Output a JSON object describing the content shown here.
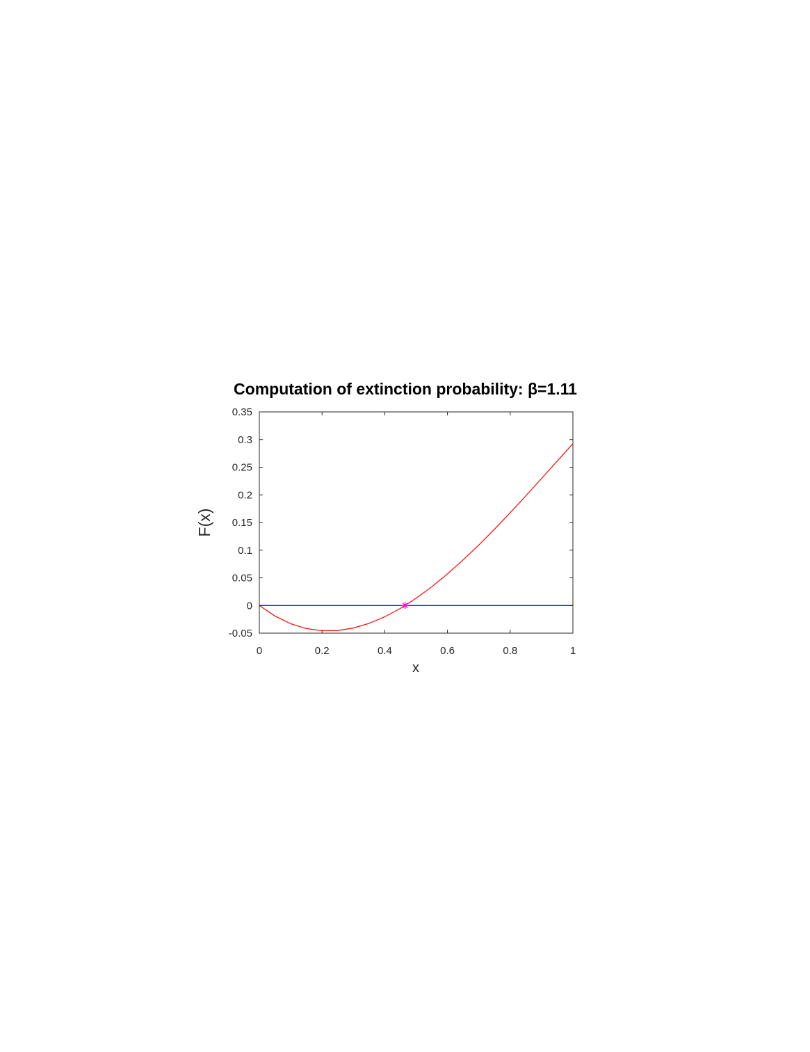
{
  "chart_data": {
    "type": "line",
    "title": "Computation of extinction probability: β=1.11",
    "xlabel": "x",
    "ylabel": "F(x)",
    "xlim": [
      0,
      1
    ],
    "ylim": [
      -0.05,
      0.35
    ],
    "xticks": [
      0,
      0.2,
      0.4,
      0.6,
      0.8,
      1
    ],
    "yticks": [
      -0.05,
      0,
      0.05,
      0.1,
      0.15,
      0.2,
      0.25,
      0.3,
      0.35
    ],
    "series": [
      {
        "color": "#ff0000",
        "marker": "none",
        "x": [
          0,
          0.05,
          0.1,
          0.15,
          0.2,
          0.25,
          0.3,
          0.35,
          0.4,
          0.45,
          0.5,
          0.55,
          0.6,
          0.65,
          0.7,
          0.75,
          0.8,
          0.85,
          0.9,
          0.95,
          1
        ],
        "values": [
          0,
          -0.0191,
          -0.0329,
          -0.0417,
          -0.0457,
          -0.0453,
          -0.0407,
          -0.0323,
          -0.0204,
          -0.0052,
          0.013,
          0.0339,
          0.0571,
          0.0824,
          0.1094,
          0.138,
          0.1677,
          0.1983,
          0.2296,
          0.2611,
          0.2925
        ]
      },
      {
        "color": "#0000ff",
        "marker": "none",
        "x": [
          0,
          1
        ],
        "values": [
          0,
          0
        ]
      },
      {
        "color": "#ff00ff",
        "marker": "asterisk",
        "x": [
          0.465
        ],
        "values": [
          0
        ]
      }
    ]
  }
}
